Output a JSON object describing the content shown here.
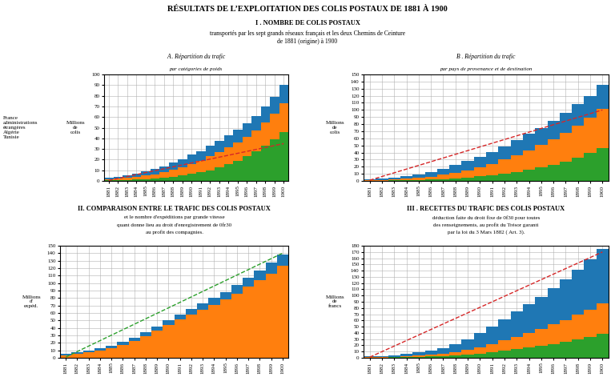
{
  "title": "RÉSULTATS DE L’EXPLOITATION DES COLIS POSTAUX DE 1881 À 1900",
  "annotations": [
    "I . NOMBRE DE COLIS POSTAUX",
    "transportés par les sept grands réseaux français et les deux Chemins de Ceinture",
    "de 1881 (origine) à 1900"
  ],
  "chart_data": [
    {
      "type": "area",
      "title": "A . Répartition du trafic",
      "subtitle": "par catégories de poids",
      "ylabel": "Millions\nde\ncolis",
      "annotations": [
        "France\nadministrations\nétrangères\nAlgérie\nTunisie"
      ],
      "categories": [
        "1881",
        "1882",
        "1883",
        "1884",
        "1885",
        "1886",
        "1887",
        "1888",
        "1889",
        "1890",
        "1891",
        "1892",
        "1893",
        "1894",
        "1895",
        "1896",
        "1897",
        "1898",
        "1899",
        "1900"
      ],
      "series": [
        {
          "type": "area",
          "values": [
            3.0,
            4.0,
            5.5,
            7.0,
            9.0,
            11.0,
            13.5,
            17.0,
            20.5,
            24.5,
            28.0,
            33.0,
            37.5,
            43.0,
            48.0,
            54.0,
            61.0,
            70.0,
            79.0,
            90.0
          ]
        },
        {
          "type": "area",
          "values": [
            1.5,
            2.0,
            2.8,
            3.8,
            5.0,
            6.2,
            8.0,
            10.5,
            13.0,
            16.0,
            19.0,
            23.0,
            27.0,
            31.5,
            36.0,
            41.5,
            47.5,
            55.0,
            63.0,
            73.0
          ]
        },
        {
          "type": "area",
          "values": [
            0.4,
            0.6,
            0.8,
            1.2,
            1.6,
            2.0,
            2.8,
            3.8,
            5.0,
            6.5,
            8.0,
            10.0,
            12.5,
            15.5,
            19.0,
            23.0,
            27.5,
            33.0,
            39.0,
            46.0
          ]
        },
        {
          "type": "line",
          "line_style": "dashed",
          "values": [
            0.5,
            2.3157894736842106,
            4.131578947368421,
            5.947368421052632,
            7.763157894736842,
            9.578947368421053,
            11.394736842105264,
            13.210526315789474,
            15.026315789473685,
            16.842105263157894,
            18.657894736842106,
            20.473684210526315,
            22.289473684210527,
            24.105263157894736,
            25.92105263157895,
            27.736842105263158,
            29.55263157894737,
            31.36842105263158,
            33.18421052631579,
            35.0
          ]
        }
      ],
      "ylim": [
        0,
        100
      ],
      "yticks": [
        0,
        10,
        20,
        30,
        40,
        50,
        60,
        70,
        80,
        90,
        100
      ],
      "grid": true
    },
    {
      "type": "area",
      "title": "B . Répartition du trafic",
      "subtitle": "par pays de provenance et de destination",
      "ylabel": "Millions\nde\ncolis",
      "categories": [
        "1881",
        "1882",
        "1883",
        "1884",
        "1885",
        "1886",
        "1887",
        "1888",
        "1889",
        "1890",
        "1891",
        "1892",
        "1893",
        "1894",
        "1895",
        "1896",
        "1897",
        "1898",
        "1899",
        "1900"
      ],
      "series": [
        {
          "type": "area",
          "values": [
            2.5,
            3.5,
            5.0,
            7.0,
            9.5,
            12.5,
            17.0,
            22.0,
            28.0,
            34.0,
            41.0,
            49.0,
            57.0,
            66.0,
            75.0,
            85.0,
            96.0,
            108.0,
            120.0,
            135.0
          ]
        },
        {
          "type": "area",
          "values": [
            1.0,
            1.5,
            2.2,
            3.2,
            4.5,
            6.0,
            8.5,
            11.5,
            15.0,
            19.0,
            24.0,
            30.0,
            36.0,
            43.0,
            51.0,
            59.0,
            68.0,
            78.0,
            89.0,
            101.0
          ]
        },
        {
          "type": "area",
          "values": [
            0.3,
            0.4,
            0.6,
            0.9,
            1.3,
            1.8,
            2.5,
            3.5,
            4.8,
            6.3,
            8.0,
            10.0,
            12.5,
            15.5,
            19.0,
            23.0,
            27.5,
            33.0,
            39.5,
            46.0
          ]
        },
        {
          "type": "line",
          "line_style": "dashed",
          "values": [
            1.0,
            6.2105263157894735,
            11.421052631578947,
            16.63157894736842,
            21.842105263157894,
            27.05263157894737,
            32.26315789473684,
            37.473684210526315,
            42.68421052631579,
            47.89473684210526,
            53.10526315789474,
            58.31578947368421,
            63.526315789473685,
            68.73684210526316,
            73.94736842105263,
            79.15789473684211,
            84.36842105263158,
            89.57894736842105,
            94.78947368421052,
            100.0
          ]
        }
      ],
      "ylim": [
        0,
        150
      ],
      "yticks": [
        0,
        10,
        20,
        30,
        40,
        50,
        60,
        70,
        80,
        90,
        100,
        110,
        120,
        130,
        140,
        150
      ],
      "grid": true
    },
    {
      "type": "area",
      "title": "II. COMPARAISON ENTRE LE TRAFIC DES COLIS POSTAUX",
      "ylabel": "Millions\nd'\nexpéd.",
      "annotations": [
        "et le nombre d'expéditions par grande vitesse",
        "quant donne lieu au droit d'enregistrement de 0fr30",
        "au profit des compagnies."
      ],
      "categories": [
        "1881",
        "1882",
        "1883",
        "1884",
        "1885",
        "1886",
        "1887",
        "1888",
        "1889",
        "1890",
        "1891",
        "1892",
        "1893",
        "1894",
        "1895",
        "1896",
        "1897",
        "1898",
        "1899",
        "1900"
      ],
      "series": [
        {
          "type": "area",
          "values": [
            5.0,
            7.0,
            9.5,
            12.5,
            16.5,
            21.0,
            27.0,
            34.0,
            42.0,
            50.0,
            58.0,
            65.0,
            73.0,
            80.0,
            88.0,
            97.0,
            107.0,
            117.0,
            127.0,
            138.0
          ]
        },
        {
          "type": "area",
          "values": [
            3.5,
            5.0,
            7.0,
            9.5,
            13.0,
            17.0,
            22.0,
            28.5,
            36.0,
            43.5,
            51.0,
            57.5,
            64.5,
            71.0,
            78.0,
            86.0,
            95.0,
            104.0,
            113.0,
            123.0
          ]
        },
        {
          "type": "line",
          "line_style": "dashed",
          "values": [
            1.0,
            8.31578947368421,
            15.631578947368421,
            22.94736842105263,
            30.263157894736842,
            37.578947368421055,
            44.89473684210526,
            52.21052631578947,
            59.526315789473685,
            66.84210526315789,
            74.15789473684211,
            81.47368421052632,
            88.78947368421052,
            96.10526315789474,
            103.42105263157895,
            110.73684210526316,
            118.05263157894737,
            125.36842105263158,
            132.68421052631578,
            140.0
          ]
        }
      ],
      "ylim": [
        0,
        150
      ],
      "yticks": [
        0,
        10,
        20,
        30,
        40,
        50,
        60,
        70,
        80,
        90,
        100,
        110,
        120,
        130,
        140,
        150
      ],
      "grid": true
    },
    {
      "type": "area",
      "title": "III . RECETTES DU TRAFIC DES COLIS POSTAUX",
      "ylabel": "Millions\nde\nfrancs",
      "annotations": [
        "déduction faite du droit fixe de 0f30 pour toutes",
        "des renseignements, au profit du Trésor garanti",
        "par la loi du 3 Mars 1882 ( Art. 3)."
      ],
      "categories": [
        "1881",
        "1882",
        "1883",
        "1884",
        "1885",
        "1886",
        "1887",
        "1888",
        "1889",
        "1890",
        "1891",
        "1892",
        "1893",
        "1894",
        "1895",
        "1896",
        "1897",
        "1898",
        "1899",
        "1900"
      ],
      "series": [
        {
          "type": "area",
          "values": [
            2.0,
            3.0,
            4.5,
            6.0,
            8.5,
            12.0,
            16.0,
            22.0,
            30.0,
            40.0,
            50.0,
            62.0,
            74.0,
            86.0,
            98.0,
            112.0,
            126.0,
            142.0,
            158.0,
            175.0
          ]
        },
        {
          "type": "area",
          "values": [
            0.8,
            1.2,
            1.8,
            2.5,
            3.5,
            5.0,
            6.5,
            9.0,
            12.5,
            17.0,
            22.0,
            28.0,
            34.0,
            40.0,
            46.5,
            53.5,
            61.0,
            69.0,
            77.5,
            87.0
          ]
        },
        {
          "type": "area",
          "values": [
            0.3,
            0.5,
            0.7,
            1.0,
            1.5,
            2.0,
            2.7,
            3.7,
            5.0,
            7.0,
            9.0,
            11.5,
            14.0,
            16.5,
            19.5,
            22.5,
            26.0,
            29.5,
            33.5,
            38.0
          ]
        },
        {
          "type": "line",
          "line_style": "dashed",
          "values": [
            1.0,
            9.894736842105264,
            18.789473684210527,
            27.684210526315788,
            36.578947368421055,
            45.473684210526315,
            54.36842105263158,
            63.26315789473684,
            72.15789473684211,
            81.05263157894737,
            89.94736842105263,
            98.84210526315789,
            107.73684210526316,
            116.63157894736842,
            125.52631578947368,
            134.42105263157896,
            143.31578947368422,
            152.21052631578948,
            161.10526315789474,
            170.0
          ]
        }
      ],
      "ylim": [
        0,
        180
      ],
      "yticks": [
        0,
        10,
        20,
        30,
        40,
        50,
        60,
        70,
        80,
        90,
        100,
        110,
        120,
        130,
        140,
        150,
        160,
        170,
        180
      ],
      "grid": true
    }
  ]
}
